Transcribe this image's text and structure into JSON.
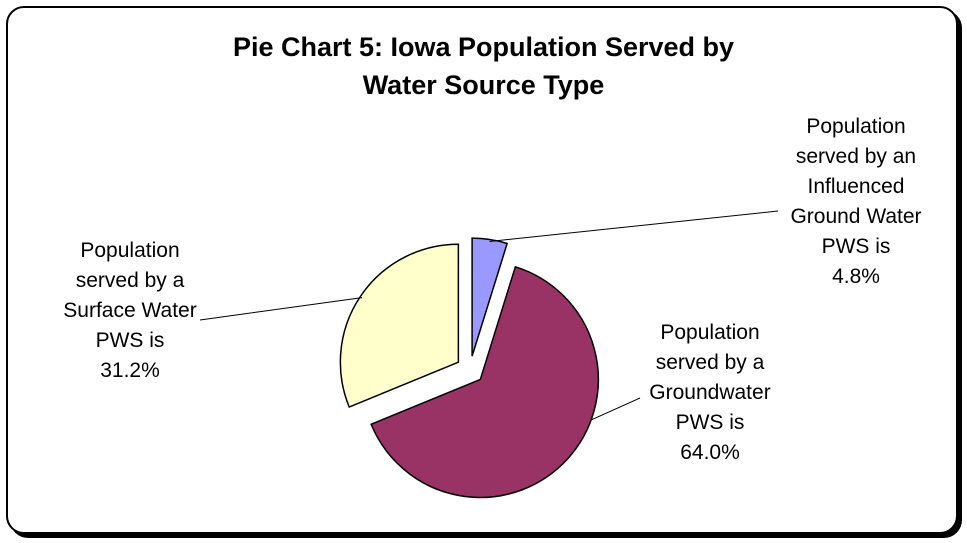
{
  "chart_data": {
    "type": "pie",
    "title_lines": [
      "Pie Chart 5:  Iowa Population Served by",
      "Water Source Type"
    ],
    "slices": [
      {
        "label_lines": [
          "Population",
          "served by an",
          "Influenced",
          "Ground Water",
          "PWS is",
          "4.8%"
        ],
        "value": 4.8,
        "color": "#9999ff",
        "exploded": true
      },
      {
        "label_lines": [
          "Population",
          "served by a",
          "Groundwater",
          "PWS is",
          "64.0%"
        ],
        "value": 64.0,
        "color": "#993366",
        "exploded": true
      },
      {
        "label_lines": [
          "Population",
          "served by a",
          "Surface Water",
          "PWS is",
          "31.2%"
        ],
        "value": 31.2,
        "color": "#ffffcc",
        "exploded": true
      }
    ],
    "legend": "none"
  }
}
